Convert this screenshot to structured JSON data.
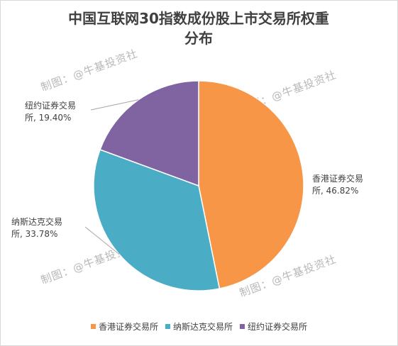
{
  "watermark": "制图：@牛基投资社",
  "chart_data": {
    "type": "pie",
    "title_line1": "中国互联网30指数成份股上市交易所权重",
    "title_line2": "分布",
    "slices": [
      {
        "name": "香港证券交易所",
        "value": 46.82,
        "label_line1": "香港证券交易",
        "label_line2": "所, 46.82%",
        "color": "#f79646"
      },
      {
        "name": "纳斯达克交易所",
        "value": 33.78,
        "label_line1": "纳斯达克交易",
        "label_line2": "所, 33.78%",
        "color": "#4bacc6"
      },
      {
        "name": "纽约证券交易所",
        "value": 19.4,
        "label_line1": "纽约证券交易",
        "label_line2": "所, 19.40%",
        "color": "#8064a2"
      }
    ],
    "legend": [
      {
        "label": "香港证券交易所",
        "color": "#f79646"
      },
      {
        "label": "纳斯达克交易所",
        "color": "#4bacc6"
      },
      {
        "label": "纽约证券交易所",
        "color": "#8064a2"
      }
    ],
    "start_angle": "12 o'clock",
    "direction": "clockwise",
    "legend_position": "bottom"
  }
}
